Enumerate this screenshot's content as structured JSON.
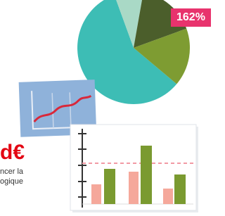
{
  "badge": "162%",
  "promo": {
    "amount": "d€",
    "line1": "ncer la",
    "line2": "ogique"
  }
}
